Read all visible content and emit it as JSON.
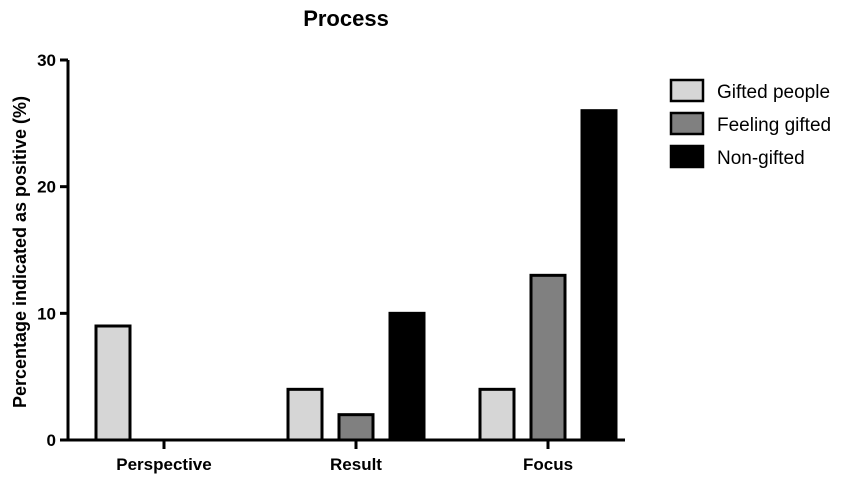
{
  "chart_data": {
    "type": "bar",
    "title": "Process",
    "xlabel": "",
    "ylabel": "Percentage indicated as positive (%)",
    "ylim": [
      0,
      30
    ],
    "yticks": [
      0,
      10,
      20,
      30
    ],
    "categories": [
      "Perspective",
      "Result",
      "Focus"
    ],
    "series": [
      {
        "name": "Gifted people",
        "color": "#d6d6d6",
        "values": [
          9,
          4,
          4
        ]
      },
      {
        "name": "Feeling gifted",
        "color": "#808080",
        "values": [
          0,
          2,
          13
        ]
      },
      {
        "name": "Non-gifted",
        "color": "#000000",
        "values": [
          0,
          10,
          26
        ]
      }
    ],
    "grid": false,
    "legend": "right"
  }
}
